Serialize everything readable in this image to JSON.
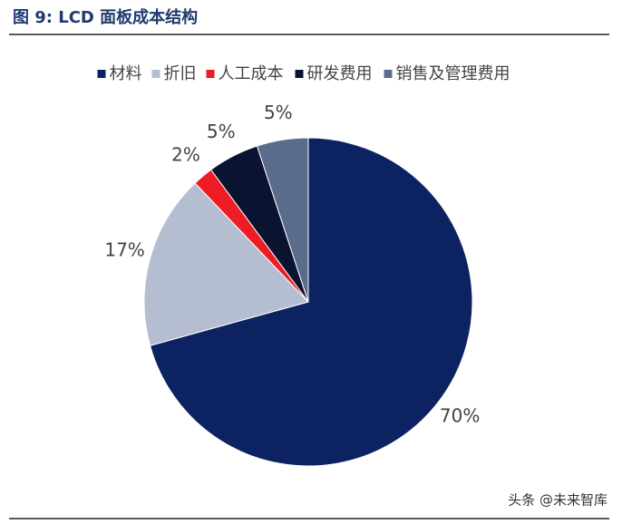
{
  "chart_data": {
    "type": "pie",
    "title": "图 9:  LCD 面板成本结构",
    "categories": [
      "材料",
      "折旧",
      "人工成本",
      "研发费用",
      "销售及管理费用"
    ],
    "values": [
      70,
      17,
      2,
      5,
      5
    ],
    "value_labels": [
      "70%",
      "17%",
      "2%",
      "5%",
      "5%"
    ],
    "colors": [
      "#0d2260",
      "#b5bdd0",
      "#ee1c25",
      "#0a1431",
      "#5b6b8c"
    ],
    "legend": "top",
    "watermark": "头条 @未来智库"
  }
}
